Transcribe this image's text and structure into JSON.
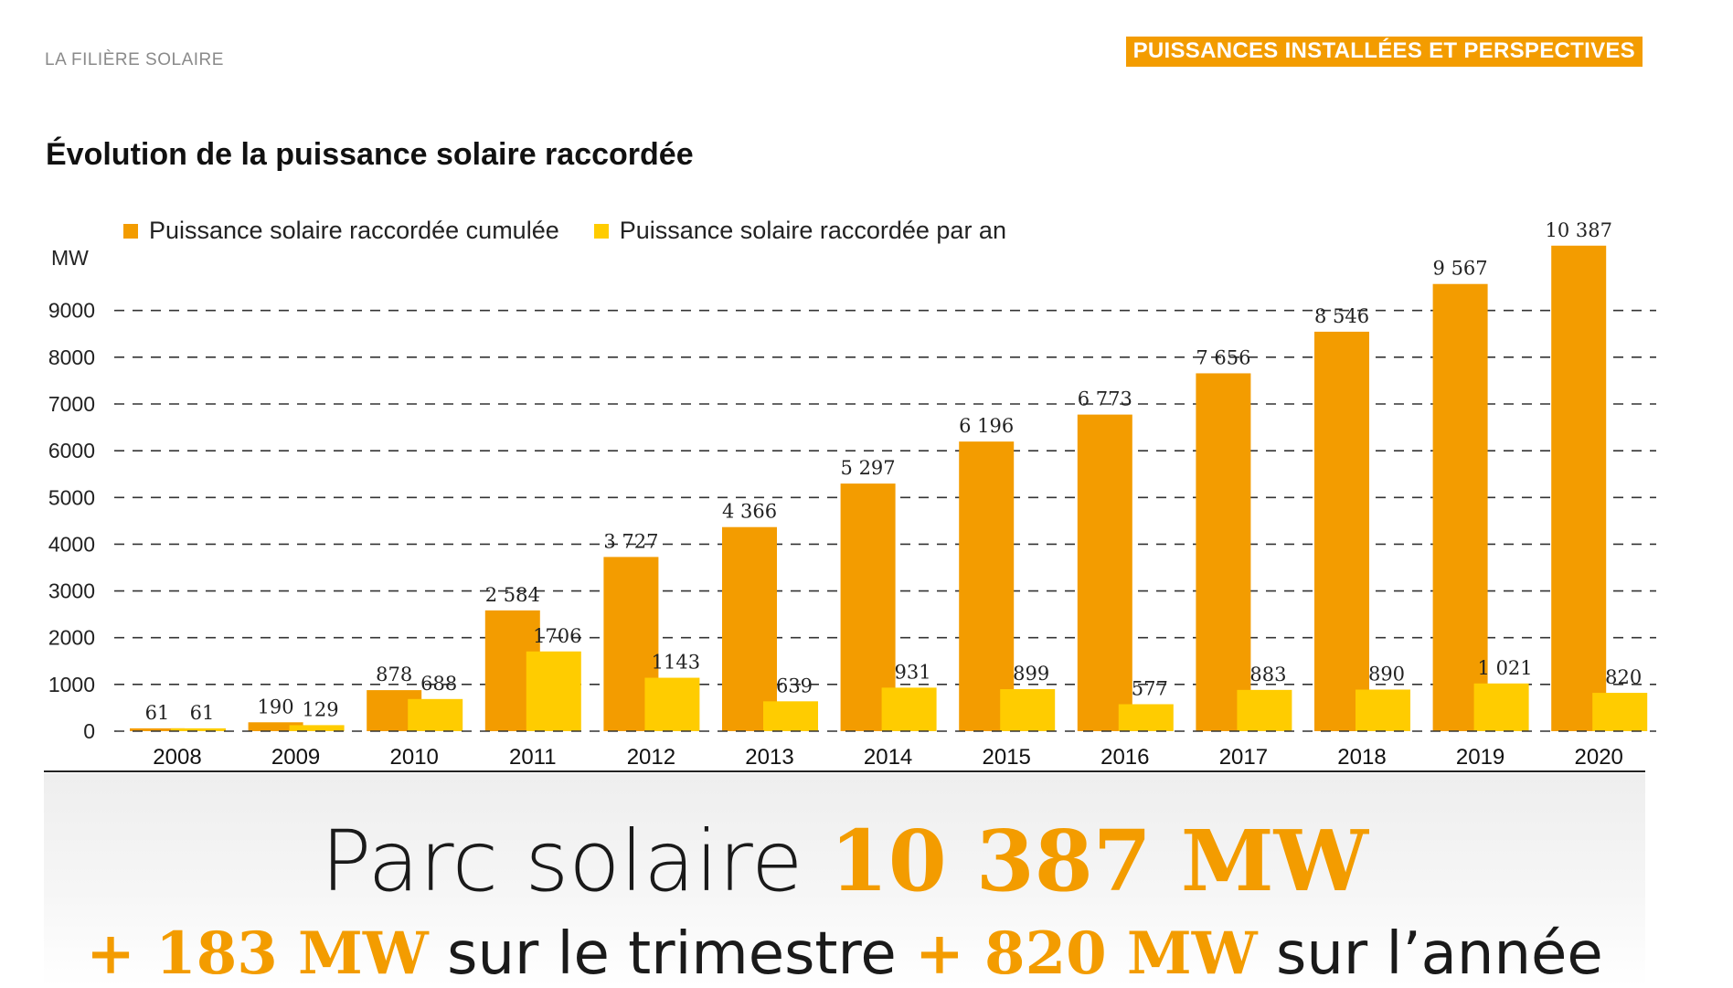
{
  "header": {
    "section_label": "LA FILIÈRE SOLAIRE",
    "section_badge": "PUISSANCES INSTALLÉES ET PERSPECTIVES"
  },
  "colors": {
    "cumulative": "#f39c00",
    "annual": "#ffcc00",
    "badge": "#f39c00"
  },
  "chart_data": {
    "type": "bar",
    "title": "Évolution de la puissance solaire raccordée",
    "ylabel": "MW",
    "xlabel": "",
    "ylim": [
      0,
      10500
    ],
    "yticks": [
      0,
      1000,
      2000,
      3000,
      4000,
      5000,
      6000,
      7000,
      8000,
      9000
    ],
    "ytick_labels": [
      "0",
      "1000",
      "2000",
      "3000",
      "4000",
      "5000",
      "6000",
      "7000",
      "8000",
      "9000"
    ],
    "grid": true,
    "legend_position": "top-left",
    "categories": [
      "2008",
      "2009",
      "2010",
      "2011",
      "2012",
      "2013",
      "2014",
      "2015",
      "2016",
      "2017",
      "2018",
      "2019",
      "2020"
    ],
    "series": [
      {
        "name": "Puissance solaire raccordée cumulée",
        "values": [
          61,
          190,
          878,
          2584,
          3727,
          4366,
          5297,
          6196,
          6773,
          7656,
          8546,
          9567,
          10387
        ],
        "labels": [
          "61",
          "190",
          "878",
          "2 584",
          "3 727",
          "4 366",
          "5 297",
          "6 196",
          "6 773",
          "7 656",
          "8 546",
          "9 567",
          "10 387"
        ]
      },
      {
        "name": "Puissance solaire raccordée par an",
        "values": [
          61,
          129,
          688,
          1706,
          1143,
          639,
          931,
          899,
          577,
          883,
          890,
          1021,
          820
        ],
        "labels": [
          "61",
          "129",
          "688",
          "1706",
          "1143",
          "639",
          "931",
          "899",
          "577",
          "883",
          "890",
          "1 021",
          "820"
        ]
      }
    ]
  },
  "summary": {
    "headline_prefix": "Parc solaire ",
    "headline_value": "10 387 MW",
    "quarter_value": "+ 183 MW",
    "quarter_text": " sur le trimestre ",
    "year_value": "+ 820 MW",
    "year_text": " sur l’année"
  }
}
